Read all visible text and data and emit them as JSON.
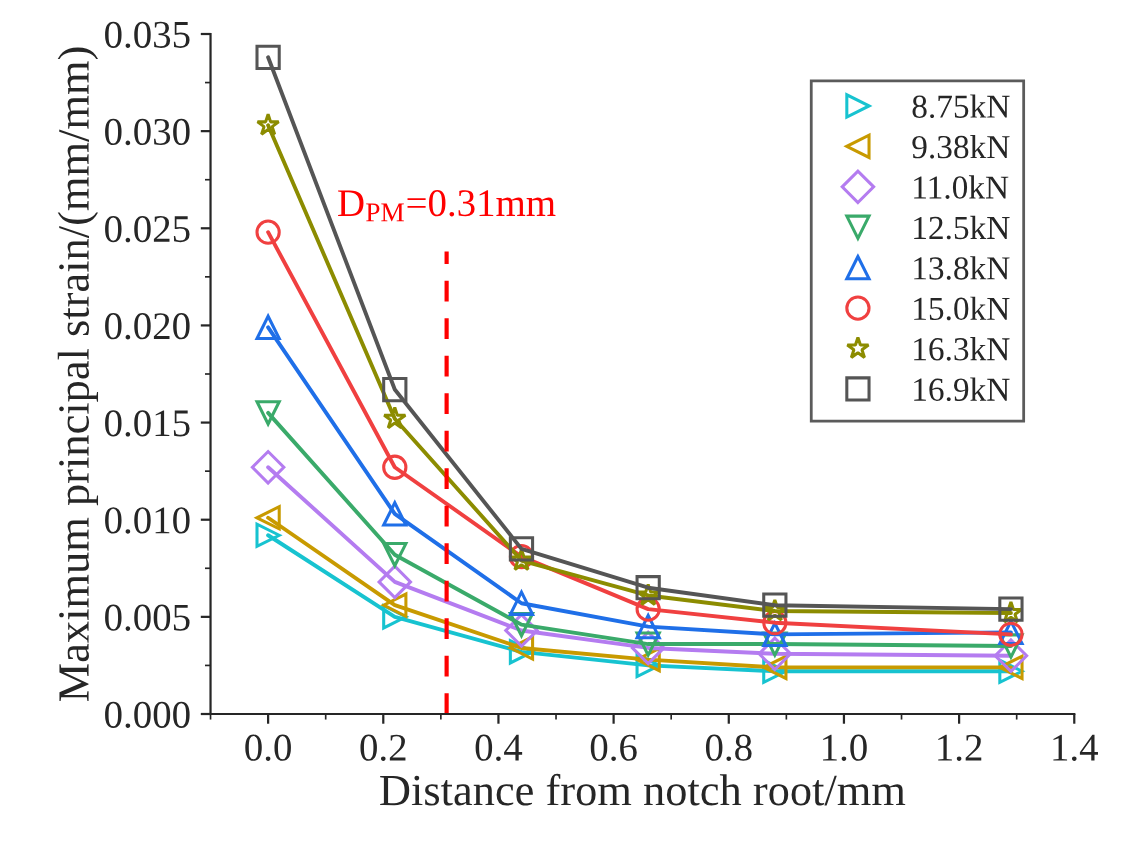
{
  "chart_data": {
    "type": "line",
    "xlabel": "Distance from notch root/mm",
    "ylabel": "Maximum principal strain/(mm/mm)",
    "x": [
      0,
      0.22,
      0.44,
      0.66,
      0.88,
      1.29
    ],
    "xlim": [
      -0.1,
      1.4
    ],
    "xticks": [
      {
        "value": 0,
        "label": "0.0"
      },
      {
        "value": 0.2,
        "label": "0.2"
      },
      {
        "value": 0.4,
        "label": "0.4"
      },
      {
        "value": 0.6,
        "label": "0.6"
      },
      {
        "value": 0.8,
        "label": "0.8"
      },
      {
        "value": 1.0,
        "label": "1.0"
      },
      {
        "value": 1.2,
        "label": "1.2"
      },
      {
        "value": 1.4,
        "label": "1.4"
      }
    ],
    "ylim": [
      0,
      0.035
    ],
    "yticks": [
      {
        "value": 0,
        "label": "0.000"
      },
      {
        "value": 0.005,
        "label": "0.005"
      },
      {
        "value": 0.01,
        "label": "0.010"
      },
      {
        "value": 0.015,
        "label": "0.015"
      },
      {
        "value": 0.02,
        "label": "0.020"
      },
      {
        "value": 0.025,
        "label": "0.025"
      },
      {
        "value": 0.03,
        "label": "0.030"
      },
      {
        "value": 0.035,
        "label": "0.035"
      }
    ],
    "series": [
      {
        "name": "8.75kN",
        "color": "#17c3d0",
        "marker": "triangle-right",
        "values": [
          0.0092,
          0.005,
          0.0032,
          0.0025,
          0.0022,
          0.0022
        ]
      },
      {
        "name": "9.38kN",
        "color": "#c89a00",
        "marker": "triangle-left",
        "values": [
          0.0101,
          0.0056,
          0.0034,
          0.0028,
          0.0024,
          0.0024
        ]
      },
      {
        "name": "11.0kN",
        "color": "#b47cf0",
        "marker": "diamond",
        "values": [
          0.0127,
          0.0068,
          0.0043,
          0.0034,
          0.0031,
          0.003
        ]
      },
      {
        "name": "12.5kN",
        "color": "#3aaa6a",
        "marker": "triangle-down",
        "values": [
          0.0155,
          0.0082,
          0.0046,
          0.0036,
          0.0036,
          0.0035
        ]
      },
      {
        "name": "13.8kN",
        "color": "#1f6fe8",
        "marker": "triangle",
        "values": [
          0.0199,
          0.0103,
          0.0057,
          0.0045,
          0.0041,
          0.0042
        ]
      },
      {
        "name": "15.0kN",
        "color": "#f04040",
        "marker": "circle",
        "values": [
          0.0248,
          0.0127,
          0.0081,
          0.0054,
          0.0047,
          0.0041
        ]
      },
      {
        "name": "16.3kN",
        "color": "#8c8c00",
        "marker": "star",
        "values": [
          0.0303,
          0.0152,
          0.0079,
          0.0061,
          0.0053,
          0.0052
        ]
      },
      {
        "name": "16.9kN",
        "color": "#555555",
        "marker": "square",
        "values": [
          0.0338,
          0.0167,
          0.0085,
          0.0065,
          0.0056,
          0.0054
        ]
      }
    ],
    "ref_lines": [
      {
        "axis": "x",
        "value": 0.31,
        "label": "D$_{PM}$=0.31mm",
        "color": "#ff0000",
        "line_style": "dashed"
      }
    ],
    "legend": "top right",
    "grid": false
  }
}
